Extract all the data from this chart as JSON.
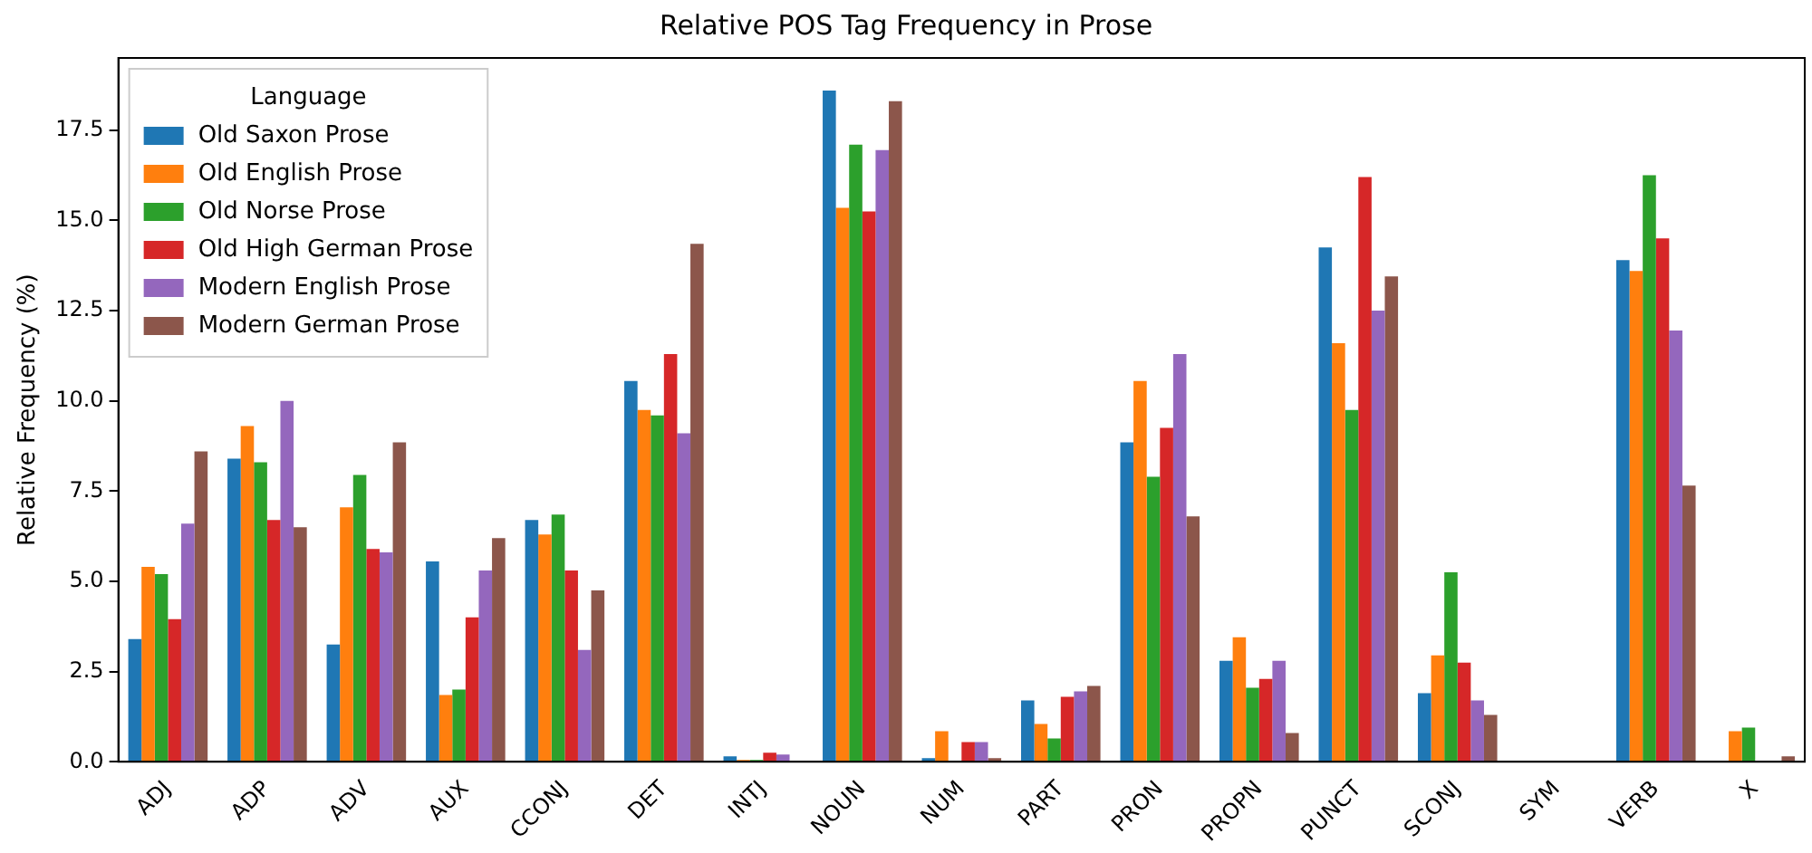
{
  "chart_data": {
    "type": "bar",
    "title": "Relative POS Tag Frequency in Prose",
    "ylabel": "Relative Frequency (%)",
    "legend_title": "Language",
    "legend": "top left",
    "grid": false,
    "categories": [
      "ADJ",
      "ADP",
      "ADV",
      "AUX",
      "CCONJ",
      "DET",
      "INTJ",
      "NOUN",
      "NUM",
      "PART",
      "PRON",
      "PROPN",
      "PUNCT",
      "SCONJ",
      "SYM",
      "VERB",
      "X"
    ],
    "ylim": [
      0,
      19.5
    ],
    "yticks": [
      {
        "value": 0,
        "label": "0.0"
      },
      {
        "value": 2.5,
        "label": "2.5"
      },
      {
        "value": 5,
        "label": "5.0"
      },
      {
        "value": 7.5,
        "label": "7.5"
      },
      {
        "value": 10,
        "label": "10.0"
      },
      {
        "value": 12.5,
        "label": "12.5"
      },
      {
        "value": 15,
        "label": "15.0"
      },
      {
        "value": 17.5,
        "label": "17.5"
      }
    ],
    "series": [
      {
        "name": "Old Saxon Prose",
        "color": "#1f77b4",
        "values": [
          3.4,
          8.4,
          3.25,
          5.55,
          6.7,
          10.55,
          0.15,
          18.6,
          0.1,
          1.7,
          8.85,
          2.8,
          14.25,
          1.9,
          0,
          13.9,
          0
        ]
      },
      {
        "name": "Old English Prose",
        "color": "#ff7f0e",
        "values": [
          5.4,
          9.3,
          7.05,
          1.85,
          6.3,
          9.75,
          0.05,
          15.35,
          0.85,
          1.05,
          10.55,
          3.45,
          11.6,
          2.95,
          0,
          13.6,
          0.85
        ]
      },
      {
        "name": "Old Norse Prose",
        "color": "#2ca02c",
        "values": [
          5.2,
          8.3,
          7.95,
          2.0,
          6.85,
          9.6,
          0.05,
          17.1,
          0,
          0.65,
          7.9,
          2.05,
          9.75,
          5.25,
          0,
          16.25,
          0.95
        ]
      },
      {
        "name": "Old High German Prose",
        "color": "#d62728",
        "values": [
          3.95,
          6.7,
          5.9,
          4.0,
          5.3,
          11.3,
          0.25,
          15.25,
          0.55,
          1.8,
          9.25,
          2.3,
          16.2,
          2.75,
          0,
          14.5,
          0
        ]
      },
      {
        "name": "Modern English Prose",
        "color": "#9467bd",
        "values": [
          6.6,
          10.0,
          5.8,
          5.3,
          3.1,
          9.1,
          0.2,
          16.95,
          0.55,
          1.95,
          11.3,
          2.8,
          12.5,
          1.7,
          0,
          11.95,
          0
        ]
      },
      {
        "name": "Modern German Prose",
        "color": "#8c564b",
        "values": [
          8.6,
          6.5,
          8.85,
          6.2,
          4.75,
          14.35,
          0,
          18.3,
          0.1,
          2.1,
          6.8,
          0.8,
          13.45,
          1.3,
          0,
          7.65,
          0.15
        ]
      }
    ]
  }
}
